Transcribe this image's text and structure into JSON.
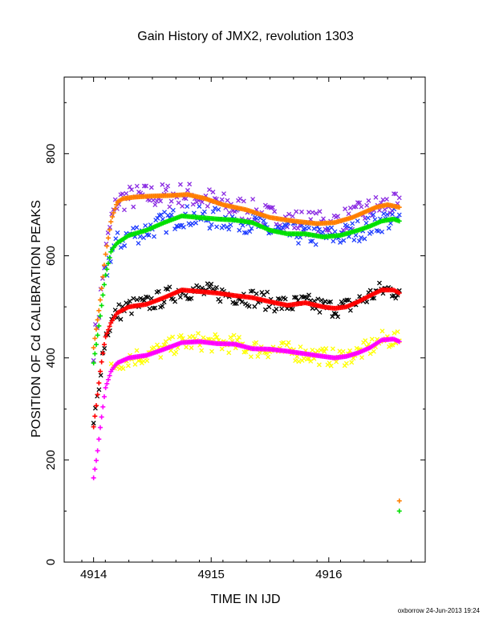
{
  "title": "Gain History of JMX2, revolution 1303",
  "footer": "oxborrow 24-Jun-2013 19:24",
  "colors": {
    "orange": "#ff7f00",
    "green": "#00e000",
    "purple": "#8a2be2",
    "blue": "#1e3cff",
    "red": "#ff0000",
    "black": "#000000",
    "magenta": "#ff00ff",
    "yellow": "#ffff00"
  },
  "chart_data": {
    "type": "scatter",
    "title": "Gain History of JMX2, revolution 1303",
    "xlabel": "TIME IN IJD",
    "ylabel": "POSITION OF Cd CALIBRATION PEAKS",
    "xlim": [
      4913.75,
      4916.82
    ],
    "ylim": [
      0,
      950
    ],
    "xticks": [
      "4914",
      "4915",
      "4916"
    ],
    "yticks": [
      "0",
      "200",
      "400",
      "600",
      "800"
    ],
    "xtick_values": [
      4914,
      4915,
      4916
    ],
    "ytick_values": [
      0,
      200,
      400,
      600,
      800
    ],
    "smooth_series": [
      {
        "color": "orange",
        "marker": "+",
        "x": [
          4914.0,
          4914.05,
          4914.1,
          4914.15,
          4914.2,
          4914.25,
          4914.35,
          4914.5,
          4914.65,
          4914.8,
          4914.95,
          4915.1,
          4915.3,
          4915.5,
          4915.7,
          4915.9,
          4916.05,
          4916.2,
          4916.3,
          4916.4,
          4916.5,
          4916.6
        ],
        "y": [
          420,
          500,
          600,
          670,
          705,
          712,
          715,
          717,
          718,
          720,
          712,
          700,
          690,
          675,
          668,
          663,
          665,
          675,
          685,
          695,
          700,
          695
        ]
      },
      {
        "color": "green",
        "marker": "+",
        "x": [
          4914.0,
          4914.05,
          4914.1,
          4914.15,
          4914.2,
          4914.3,
          4914.45,
          4914.6,
          4914.75,
          4914.9,
          4915.05,
          4915.2,
          4915.35,
          4915.5,
          4915.65,
          4915.8,
          4915.95,
          4916.1,
          4916.25,
          4916.35,
          4916.45,
          4916.55,
          4916.6
        ],
        "y": [
          390,
          470,
          560,
          610,
          625,
          640,
          650,
          665,
          678,
          675,
          672,
          670,
          665,
          650,
          643,
          643,
          637,
          640,
          650,
          658,
          668,
          672,
          668
        ]
      },
      {
        "color": "red",
        "marker": "+",
        "x": [
          4914.0,
          4914.03,
          4914.06,
          4914.1,
          4914.15,
          4914.2,
          4914.3,
          4914.45,
          4914.6,
          4914.75,
          4914.9,
          4915.05,
          4915.2,
          4915.35,
          4915.5,
          4915.65,
          4915.8,
          4915.95,
          4916.05,
          4916.15,
          4916.25,
          4916.35,
          4916.45,
          4916.55,
          4916.6
        ],
        "y": [
          265,
          320,
          380,
          440,
          470,
          488,
          500,
          505,
          518,
          533,
          530,
          527,
          522,
          518,
          510,
          503,
          508,
          500,
          497,
          500,
          510,
          522,
          533,
          533,
          527
        ]
      },
      {
        "color": "magenta",
        "marker": "+",
        "x": [
          4914.0,
          4914.03,
          4914.06,
          4914.1,
          4914.15,
          4914.2,
          4914.3,
          4914.45,
          4914.6,
          4914.75,
          4914.9,
          4915.05,
          4915.2,
          4915.35,
          4915.5,
          4915.65,
          4915.8,
          4915.95,
          4916.05,
          4916.15,
          4916.25,
          4916.35,
          4916.45,
          4916.55,
          4916.6
        ],
        "y": [
          165,
          210,
          270,
          340,
          375,
          390,
          400,
          405,
          417,
          430,
          432,
          428,
          427,
          418,
          417,
          413,
          408,
          403,
          400,
          403,
          410,
          420,
          435,
          437,
          432
        ]
      }
    ],
    "scatter_series": [
      {
        "color": "purple",
        "marker": "x",
        "spread": 25,
        "x0": 4914.0,
        "x1": 4916.6,
        "follows": "orange"
      },
      {
        "color": "blue",
        "marker": "x",
        "spread": 22,
        "x0": 4914.1,
        "x1": 4916.6,
        "follows": "green"
      },
      {
        "color": "black",
        "marker": "x",
        "spread": 18,
        "x0": 4914.0,
        "x1": 4916.6,
        "follows": "red"
      },
      {
        "color": "yellow",
        "marker": "x",
        "spread": 18,
        "x0": 4914.15,
        "x1": 4916.6,
        "follows": "magenta"
      }
    ],
    "outliers": [
      {
        "color": "orange",
        "marker": "+",
        "x": 4916.6,
        "y": 120
      },
      {
        "color": "green",
        "marker": "+",
        "x": 4916.6,
        "y": 100
      }
    ]
  }
}
